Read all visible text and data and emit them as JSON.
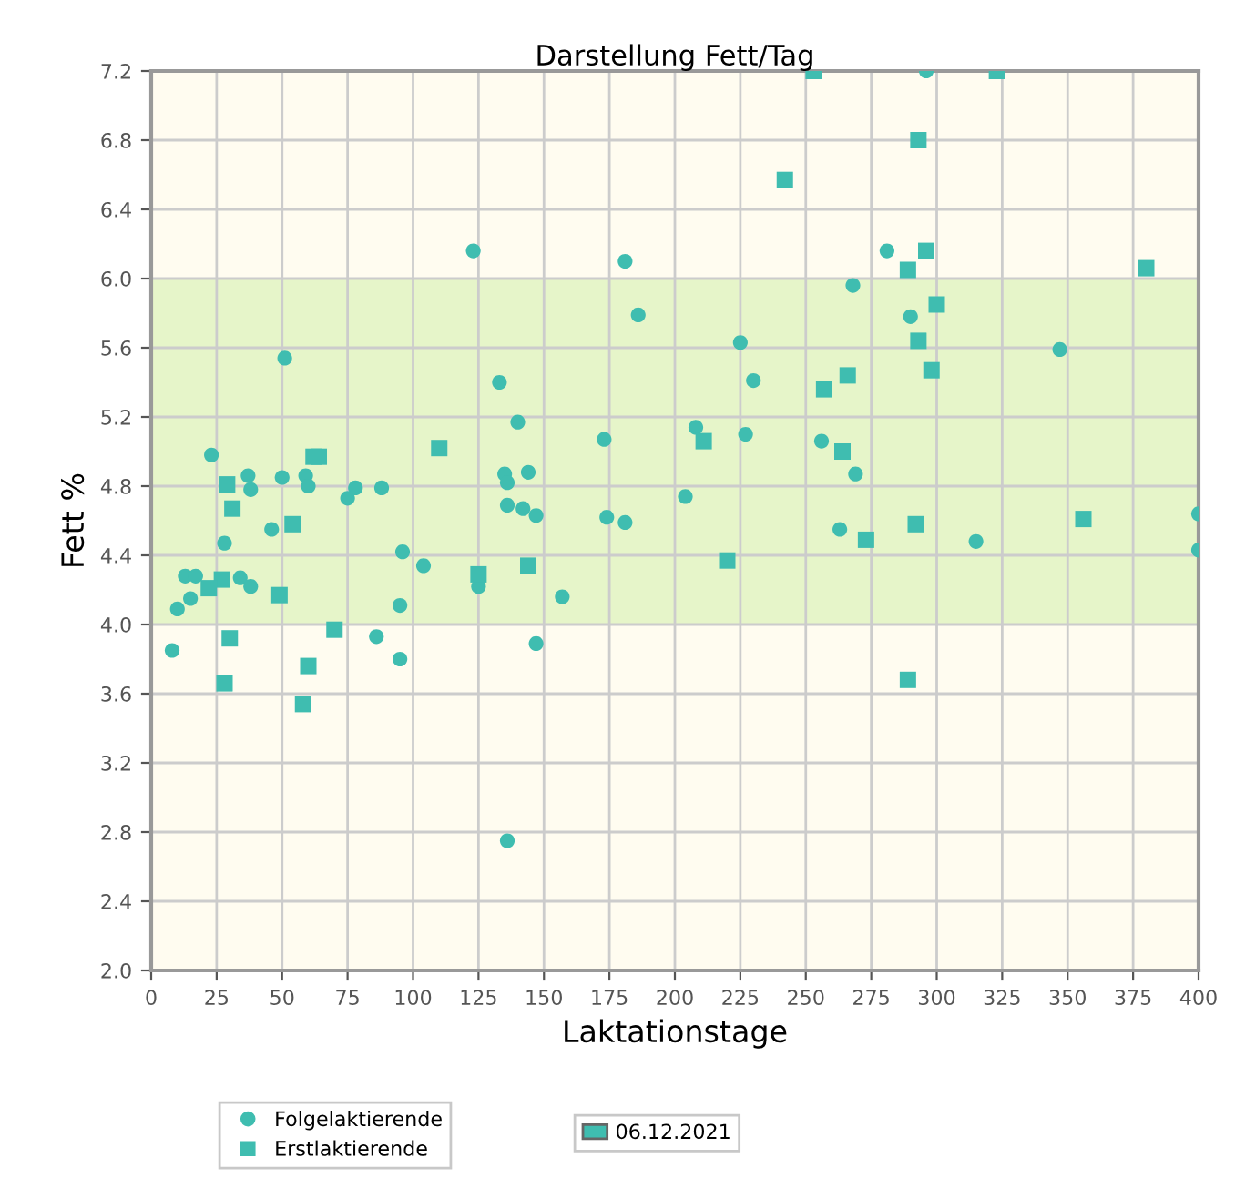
{
  "chart_data": {
    "type": "scatter",
    "title": "Darstellung Fett/Tag",
    "xlabel": "Laktationstage",
    "ylabel": "Fett %",
    "xlim": [
      0,
      400
    ],
    "xticks": [
      0,
      25,
      50,
      75,
      100,
      125,
      150,
      175,
      200,
      225,
      250,
      275,
      300,
      325,
      350,
      375,
      400
    ],
    "ylim": [
      2.0,
      7.2
    ],
    "yticks": [
      {
        "value": 2.0,
        "label": "2.0"
      },
      {
        "value": 2.4,
        "label": "2.4"
      },
      {
        "value": 2.8,
        "label": "2.8"
      },
      {
        "value": 3.2,
        "label": "3.2"
      },
      {
        "value": 3.6,
        "label": "3.6"
      },
      {
        "value": 4.0,
        "label": "4.0"
      },
      {
        "value": 4.4,
        "label": "4.4"
      },
      {
        "value": 4.8,
        "label": "4.8"
      },
      {
        "value": 5.2,
        "label": "5.2"
      },
      {
        "value": 5.6,
        "label": "5.6"
      },
      {
        "value": 6.0,
        "label": "6.0"
      },
      {
        "value": 6.4,
        "label": "6.4"
      },
      {
        "value": 6.8,
        "label": "6.8"
      },
      {
        "value": 7.2,
        "label": "7.2"
      }
    ],
    "grid": true,
    "legend": "bottom",
    "bands": [
      {
        "axis": "y",
        "from": 4.0,
        "to": 6.0,
        "color": "#e6f5c9"
      }
    ],
    "annotations": [
      "06.12.2021"
    ],
    "series": [
      {
        "name": "Folgelaktierende",
        "color": "#3fbdb0",
        "marker": "circle",
        "x": [
          123,
          181,
          186,
          51,
          133,
          140,
          173,
          23,
          135,
          144,
          136,
          37,
          38,
          50,
          59,
          60,
          78,
          75,
          88,
          136,
          142,
          147,
          174,
          181,
          46,
          28,
          96,
          104,
          13,
          17,
          34,
          38,
          125,
          157,
          10,
          15,
          95,
          8,
          86,
          95,
          147,
          136,
          281,
          268,
          290,
          225,
          347,
          230,
          208,
          227,
          256,
          269,
          204,
          263,
          315,
          296,
          400,
          400
        ],
        "values": [
          6.16,
          6.1,
          5.79,
          5.54,
          5.4,
          5.17,
          5.07,
          4.98,
          4.87,
          4.88,
          4.82,
          4.86,
          4.78,
          4.85,
          4.86,
          4.8,
          4.79,
          4.73,
          4.79,
          4.69,
          4.67,
          4.63,
          4.62,
          4.59,
          4.55,
          4.47,
          4.42,
          4.34,
          4.28,
          4.28,
          4.27,
          4.22,
          4.22,
          4.16,
          4.09,
          4.15,
          4.11,
          3.85,
          3.93,
          3.8,
          3.89,
          2.75,
          6.16,
          5.96,
          5.78,
          5.63,
          5.59,
          5.41,
          5.14,
          5.1,
          5.06,
          4.87,
          4.74,
          4.55,
          4.48,
          7.2,
          4.64,
          4.43
        ]
      },
      {
        "name": "Erstlaktierende",
        "color": "#3fbdb0",
        "marker": "square",
        "x": [
          293,
          242,
          296,
          289,
          380,
          300,
          293,
          298,
          266,
          257,
          211,
          264,
          292,
          273,
          356,
          220,
          289,
          110,
          29,
          31,
          64,
          62,
          54,
          27,
          22,
          144,
          125,
          49,
          30,
          28,
          70,
          60,
          58,
          253,
          323
        ],
        "values": [
          6.8,
          6.57,
          6.16,
          6.05,
          6.06,
          5.85,
          5.64,
          5.47,
          5.44,
          5.36,
          5.06,
          5.0,
          4.58,
          4.49,
          4.61,
          4.37,
          3.68,
          5.02,
          4.81,
          4.67,
          4.97,
          4.97,
          4.58,
          4.26,
          4.21,
          4.34,
          4.29,
          4.17,
          3.92,
          3.66,
          3.97,
          3.76,
          3.54,
          7.2,
          7.2
        ]
      }
    ]
  }
}
